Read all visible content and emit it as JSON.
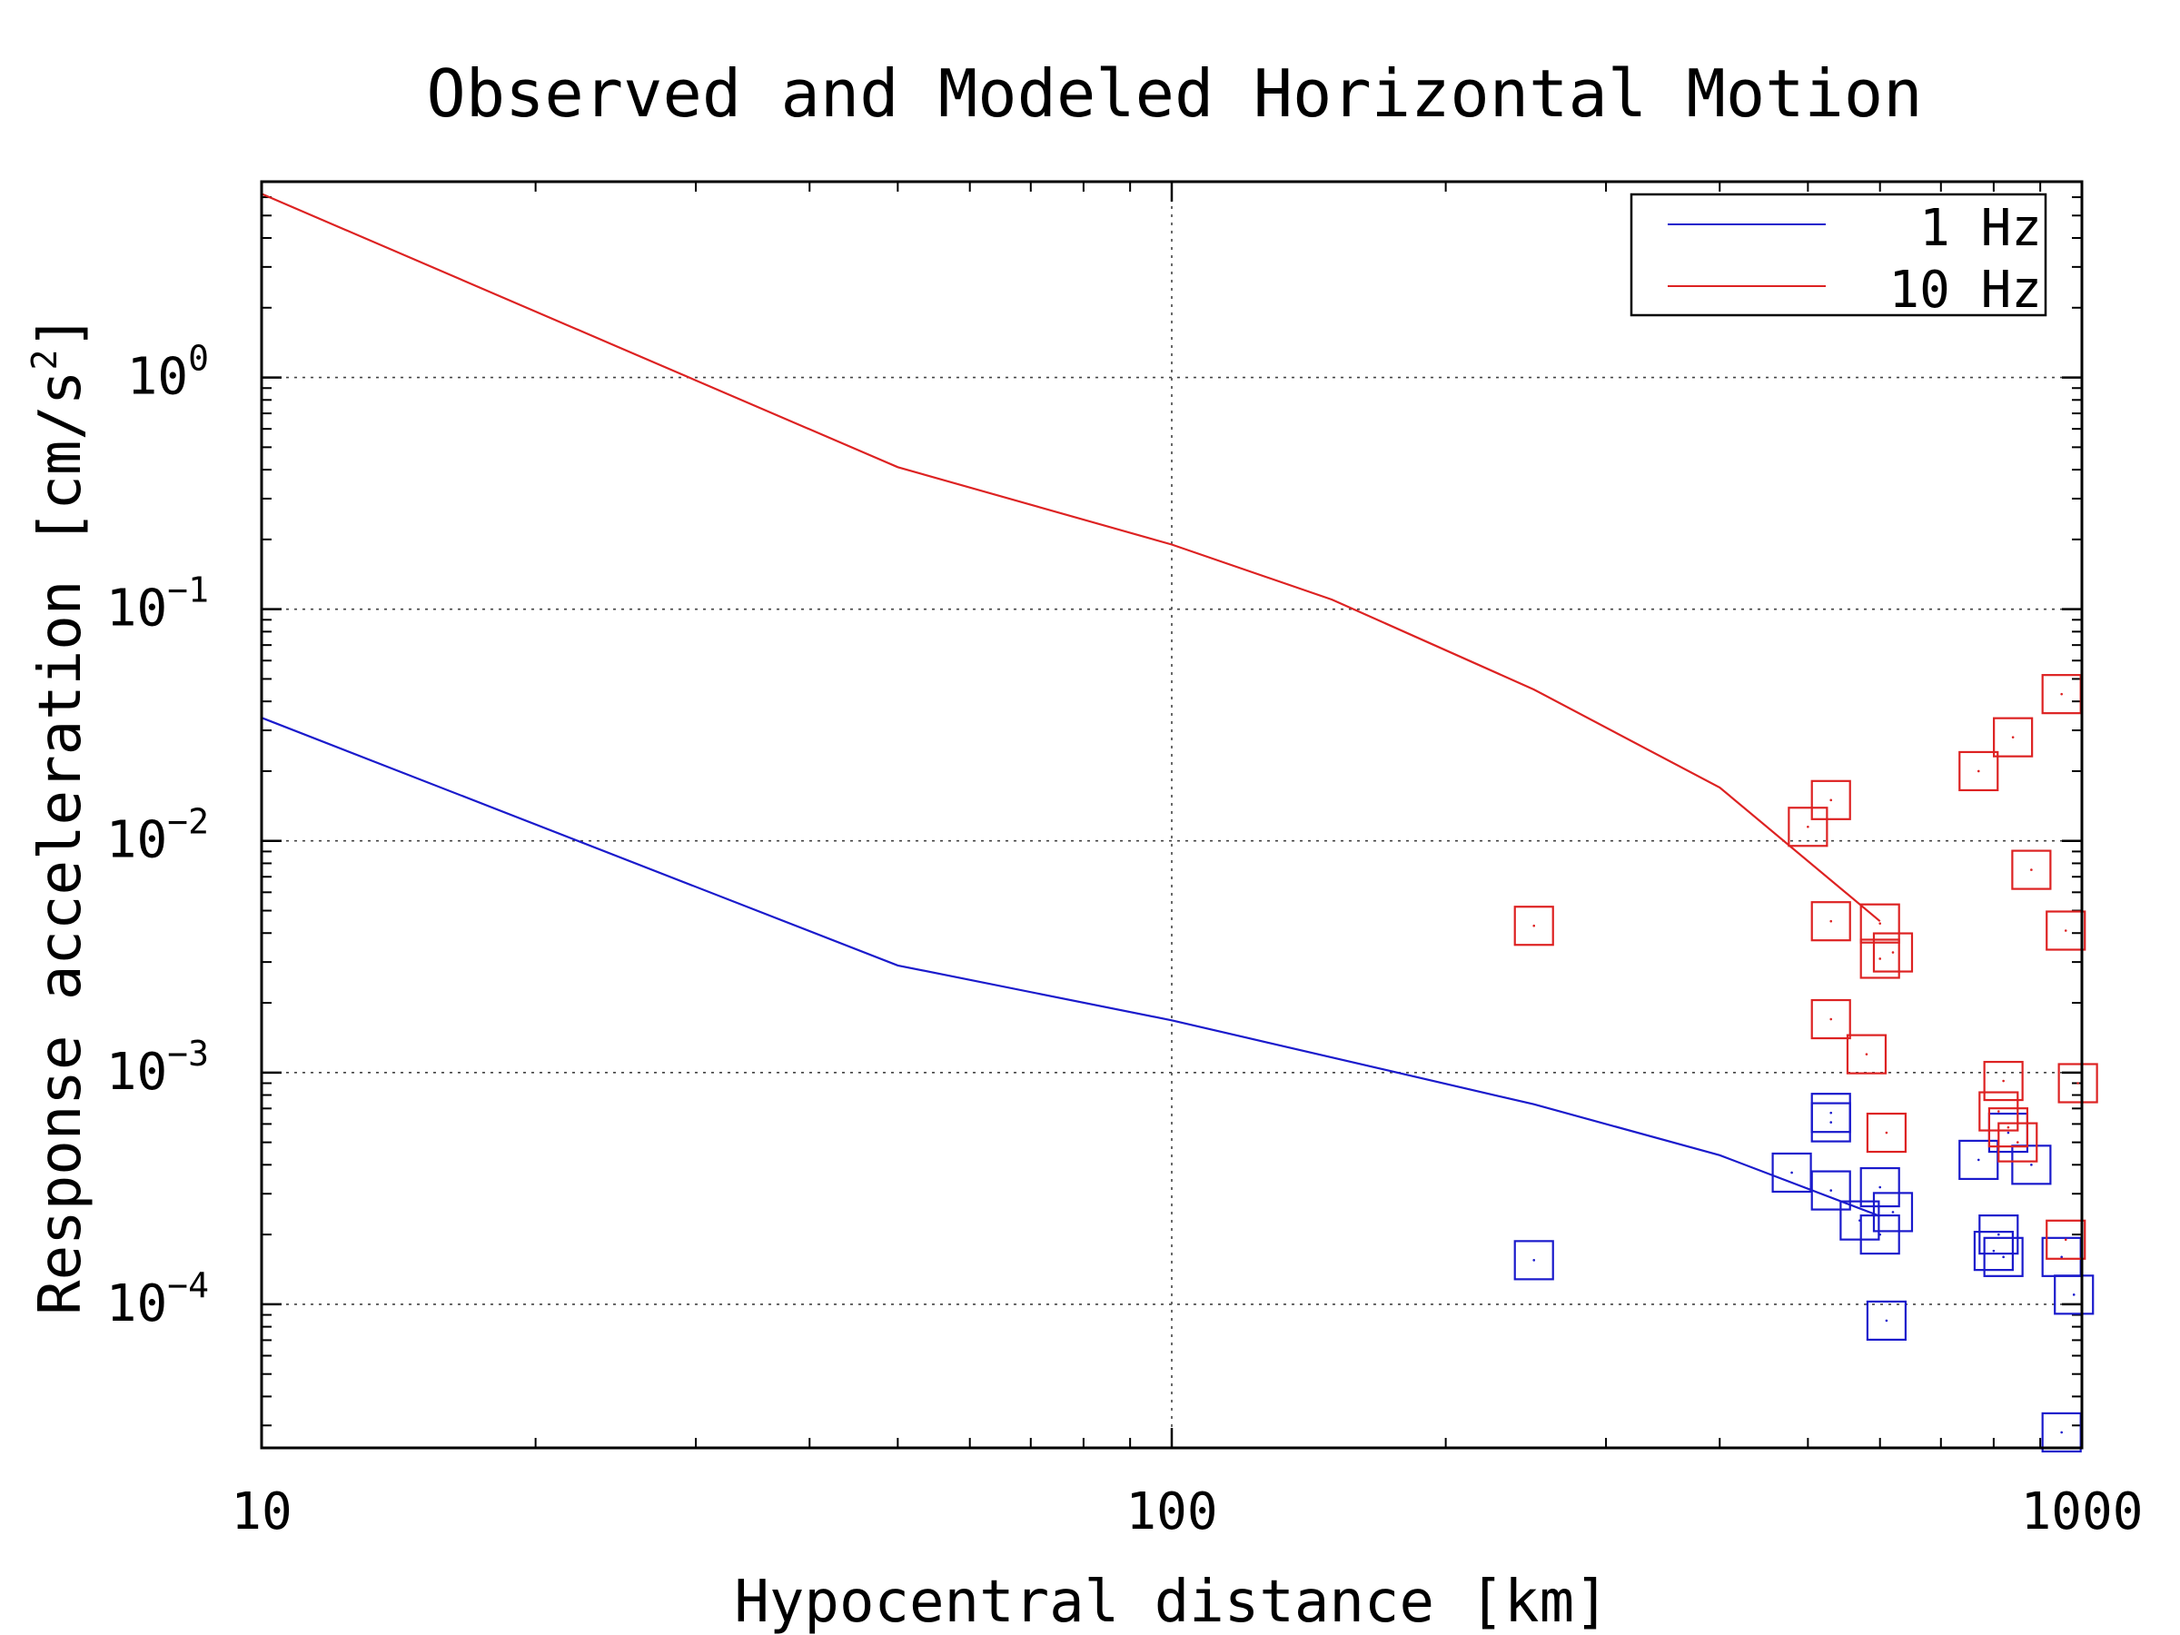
{
  "chart_data": {
    "type": "scatter",
    "title": "Observed and Modeled Horizontal Motion",
    "xlabel": "Hypocentral distance [km]",
    "ylabel": "Response acceleration [cm/s²]",
    "ylabel_parts": {
      "base": "Response acceleration [cm/s",
      "sup": "2",
      "tail": "]"
    },
    "xscale": "log",
    "yscale": "log",
    "xlim": [
      10,
      1000
    ],
    "ylim": [
      2.4e-05,
      7
    ],
    "grid": "major, dotted",
    "legend_position": "top-right",
    "x_ticks": [
      {
        "value": 10,
        "label": "10"
      },
      {
        "value": 100,
        "label": "100"
      },
      {
        "value": 1000,
        "label": "1000"
      }
    ],
    "y_ticks": [
      {
        "value": 1,
        "base": "10",
        "exp": "0"
      },
      {
        "value": 0.1,
        "base": "10",
        "exp": "−1"
      },
      {
        "value": 0.01,
        "base": "10",
        "exp": "−2"
      },
      {
        "value": 0.001,
        "base": "10",
        "exp": "−3"
      },
      {
        "value": 0.0001,
        "base": "10",
        "exp": "−4"
      }
    ],
    "series": [
      {
        "name": "1 Hz",
        "color": "#1a1acc",
        "line": [
          [
            10,
            0.034
          ],
          [
            50,
            0.0029
          ],
          [
            100,
            0.00168
          ],
          [
            250,
            0.00073
          ],
          [
            400,
            0.00044
          ],
          [
            600,
            0.00024
          ]
        ],
        "observed": [
          [
            250,
            0.000155
          ],
          [
            480,
            0.00037
          ],
          [
            530,
            0.00067
          ],
          [
            530,
            0.00061
          ],
          [
            530,
            0.00031
          ],
          [
            570,
            0.00023
          ],
          [
            600,
            0.00032
          ],
          [
            600,
            0.0002
          ],
          [
            610,
            8.5e-05
          ],
          [
            620,
            0.00025
          ],
          [
            770,
            0.00042
          ],
          [
            800,
            0.00017
          ],
          [
            810,
            0.0002
          ],
          [
            820,
            0.00016
          ],
          [
            830,
            0.00055
          ],
          [
            880,
            0.0004
          ],
          [
            950,
            2.8e-05
          ],
          [
            950,
            0.00016
          ],
          [
            980,
            0.00011
          ]
        ]
      },
      {
        "name": "10 Hz",
        "color": "#dd2222",
        "line": [
          [
            10,
            6.2
          ],
          [
            50,
            0.41
          ],
          [
            100,
            0.19
          ],
          [
            150,
            0.11
          ],
          [
            250,
            0.045
          ],
          [
            400,
            0.017
          ],
          [
            600,
            0.0045
          ]
        ],
        "observed": [
          [
            250,
            0.0043
          ],
          [
            500,
            0.0115
          ],
          [
            530,
            0.015
          ],
          [
            530,
            0.0045
          ],
          [
            530,
            0.0017
          ],
          [
            580,
            0.0012
          ],
          [
            600,
            0.0044
          ],
          [
            600,
            0.0031
          ],
          [
            610,
            0.00055
          ],
          [
            620,
            0.0033
          ],
          [
            770,
            0.02
          ],
          [
            810,
            0.00068
          ],
          [
            820,
            0.00092
          ],
          [
            830,
            0.00058
          ],
          [
            840,
            0.028
          ],
          [
            850,
            0.0005
          ],
          [
            880,
            0.0075
          ],
          [
            950,
            0.043
          ],
          [
            960,
            0.0041
          ],
          [
            960,
            0.00019
          ],
          [
            990,
            0.0009
          ]
        ]
      }
    ]
  }
}
